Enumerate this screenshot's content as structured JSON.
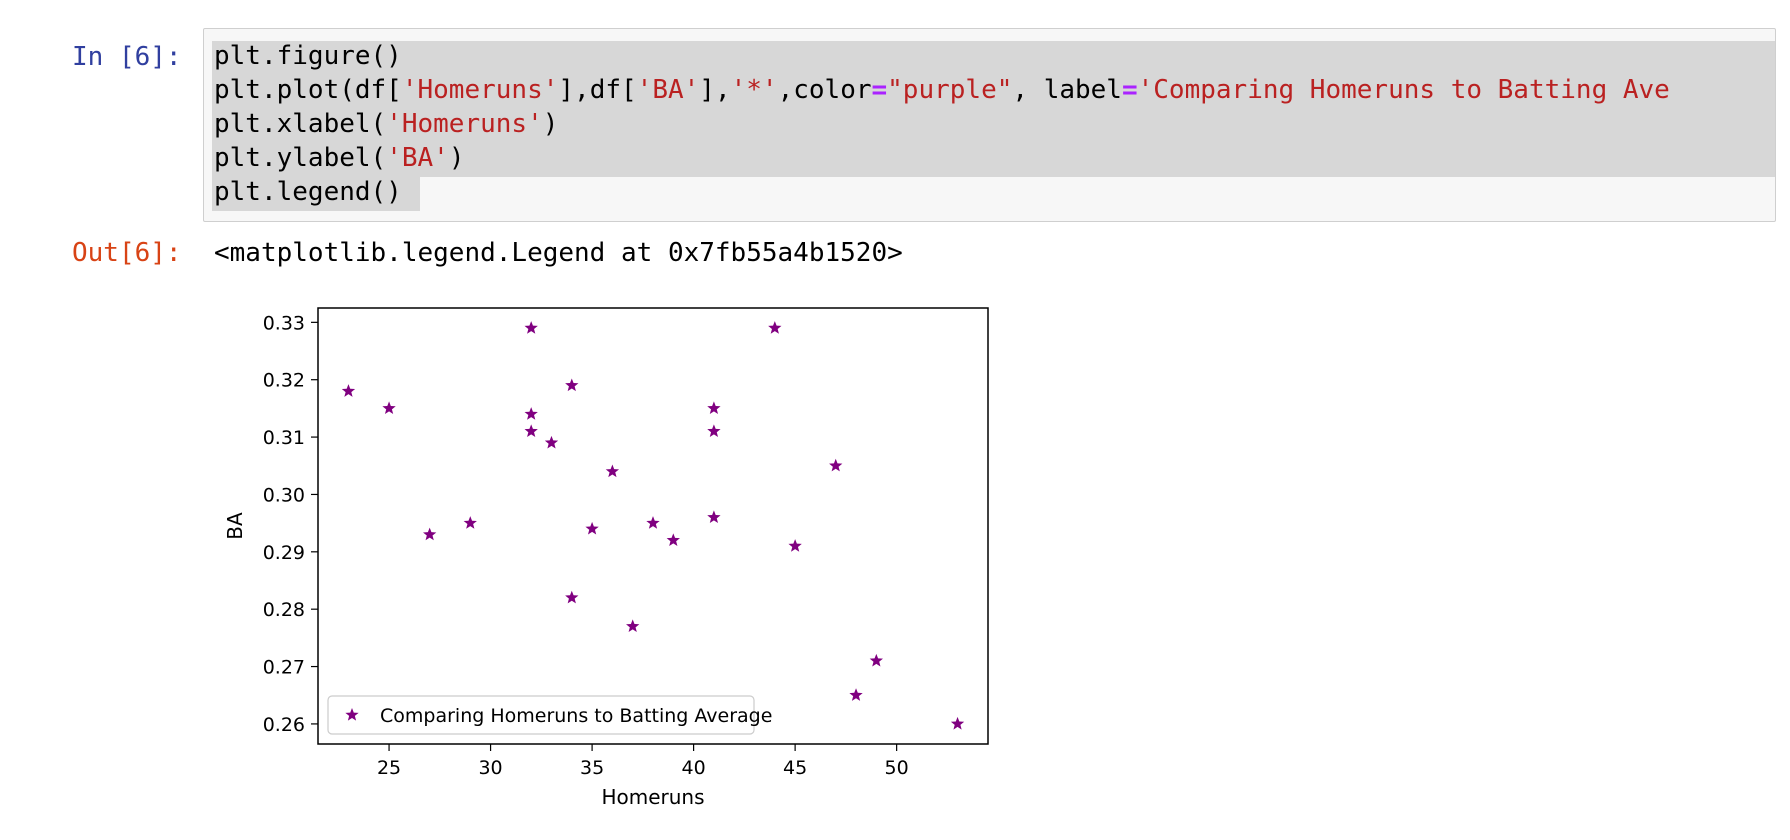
{
  "notebook": {
    "input_prompt": "In [6]:",
    "output_prompt": "Out[6]:",
    "code": {
      "line1": "plt.figure()",
      "line2": {
        "a": "plt.plot(df[",
        "b": "'Homeruns'",
        "c": "],df[",
        "d": "'BA'",
        "e": "],",
        "f": "'*'",
        "g": ",color",
        "h": "=",
        "i": "\"purple\"",
        "j": ", label",
        "k": "=",
        "l": "'Comparing Homeruns to Batting Ave"
      },
      "line3": {
        "a": "plt.xlabel(",
        "b": "'Homeruns'",
        "c": ")"
      },
      "line4": {
        "a": "plt.ylabel(",
        "b": "'BA'",
        "c": ")"
      },
      "line5": "plt.legend()"
    },
    "output_text": "<matplotlib.legend.Legend at 0x7fb55a4b1520>"
  },
  "chart_data": {
    "type": "scatter",
    "marker": "*",
    "color": "#800080",
    "xlabel": "Homeruns",
    "ylabel": "BA",
    "xlim": [
      21.5,
      54.5
    ],
    "ylim": [
      0.2565,
      0.3325
    ],
    "xticks": [
      25,
      30,
      35,
      40,
      45,
      50
    ],
    "xtick_labels": [
      "25",
      "30",
      "35",
      "40",
      "45",
      "50"
    ],
    "yticks": [
      0.26,
      0.27,
      0.28,
      0.29,
      0.3,
      0.31,
      0.32,
      0.33
    ],
    "ytick_labels": [
      "0.26",
      "0.27",
      "0.28",
      "0.29",
      "0.30",
      "0.31",
      "0.32",
      "0.33"
    ],
    "legend_position": "lower-left",
    "series": [
      {
        "name": "Comparing Homeruns to Batting Average",
        "points": [
          [
            23,
            0.318
          ],
          [
            25,
            0.315
          ],
          [
            27,
            0.293
          ],
          [
            29,
            0.295
          ],
          [
            32,
            0.329
          ],
          [
            32,
            0.314
          ],
          [
            32,
            0.311
          ],
          [
            33,
            0.309
          ],
          [
            34,
            0.319
          ],
          [
            34,
            0.282
          ],
          [
            35,
            0.294
          ],
          [
            36,
            0.304
          ],
          [
            37,
            0.277
          ],
          [
            38,
            0.295
          ],
          [
            39,
            0.292
          ],
          [
            41,
            0.315
          ],
          [
            41,
            0.311
          ],
          [
            41,
            0.296
          ],
          [
            44,
            0.329
          ],
          [
            45,
            0.291
          ],
          [
            47,
            0.305
          ],
          [
            48,
            0.265
          ],
          [
            49,
            0.271
          ],
          [
            53,
            0.26
          ]
        ]
      }
    ]
  }
}
